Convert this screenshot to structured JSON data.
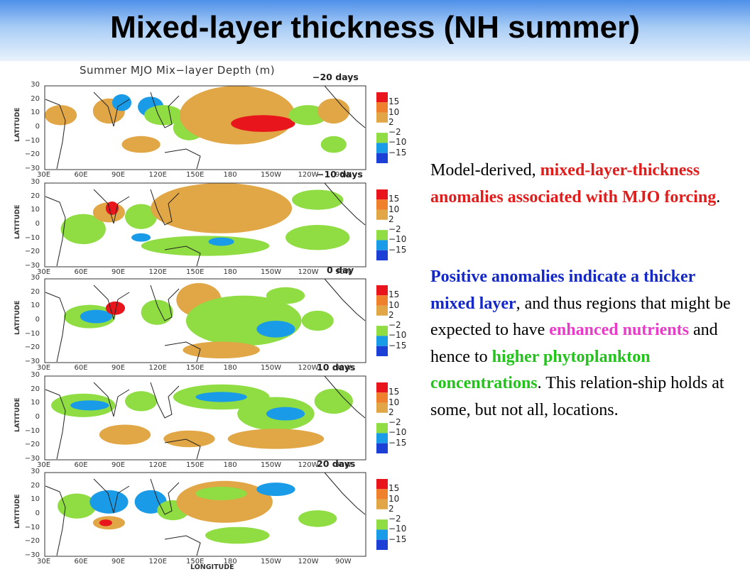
{
  "slide": {
    "title": "Mixed-layer thickness (NH summer)"
  },
  "figure": {
    "title": "Summer MJO Mix−layer Depth (m)",
    "x_axis_label": "LONGITUDE",
    "y_axis_label": "LATITUDE",
    "lat_ticks": [
      "30",
      "20",
      "10",
      "0",
      "−10",
      "−20",
      "−30"
    ],
    "lon_ticks": [
      "30E",
      "60E",
      "90E",
      "120E",
      "150E",
      "180",
      "150W",
      "120W",
      "90W"
    ],
    "colorbar_labels": [
      "15",
      "10",
      "2",
      "−2",
      "−10",
      "−15"
    ],
    "colorbar_colors": [
      "#e8161c",
      "#f0812c",
      "#e1a645",
      "#ffffff",
      "#8fdd43",
      "#1a9be8",
      "#1c3fd6"
    ],
    "panels": [
      {
        "lag": "−20 days"
      },
      {
        "lag": "−10 days"
      },
      {
        "lag": "0 day"
      },
      {
        "lag": "10 days"
      },
      {
        "lag": "20 days"
      }
    ]
  },
  "text": {
    "p1": {
      "plain1": "Model-derived, ",
      "red": "mixed-layer-thickness anomalies associated with MJO forcing",
      "plain2": "."
    },
    "p2": {
      "blue": "Positive anomalies indicate a thicker mixed layer",
      "plain1": ", and thus regions that might be expected to have ",
      "magenta": "enhanced nutrients",
      "plain2": " and hence to ",
      "green": "higher phytoplankton concentrations",
      "plain3": ".  This relation-ship holds at some, but not all, locations."
    }
  }
}
